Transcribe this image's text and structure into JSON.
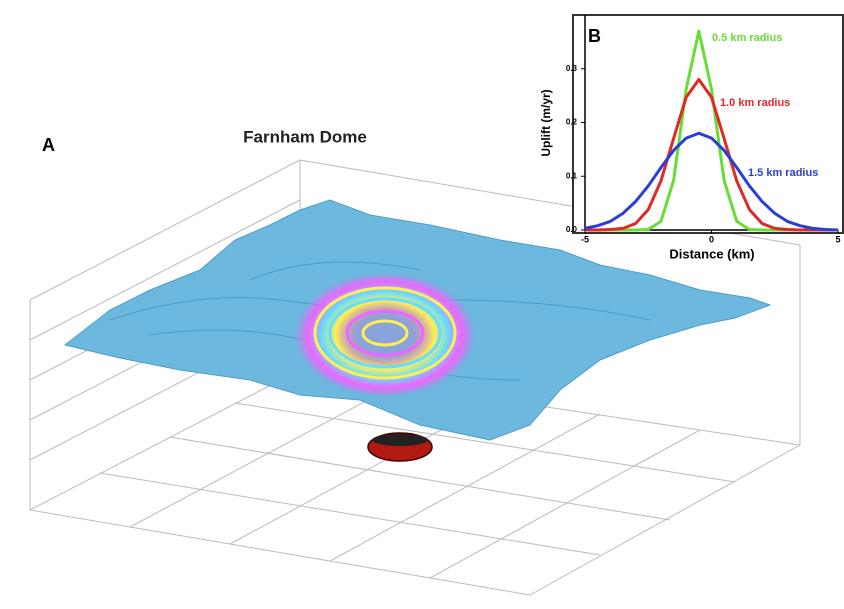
{
  "panel_a": {
    "label": "A",
    "title": "Farnham Dome"
  },
  "chart_data": {
    "type": "line",
    "label": "B",
    "x_label": "Distance (km)",
    "y_label": "Uplift (m/yr)",
    "x": [
      -5,
      -4.5,
      -4,
      -3.5,
      -3,
      -2.5,
      -2,
      -1.5,
      -1,
      -0.5,
      0,
      0.5,
      1,
      1.5,
      2,
      2.5,
      3,
      3.5,
      4,
      4.5,
      5
    ],
    "series": [
      {
        "name": "0.5 km radius",
        "color": "#66dd33",
        "values": [
          0,
          0,
          0,
          0,
          0,
          0.001,
          0.016,
          0.092,
          0.262,
          0.37,
          0.262,
          0.092,
          0.016,
          0.001,
          0,
          0,
          0,
          0,
          0,
          0,
          0
        ]
      },
      {
        "name": "1.0 km radius",
        "color": "#e02828",
        "values": [
          0,
          0,
          0.001,
          0.003,
          0.012,
          0.038,
          0.091,
          0.17,
          0.247,
          0.28,
          0.247,
          0.17,
          0.091,
          0.038,
          0.012,
          0.003,
          0.001,
          0,
          0,
          0,
          0
        ]
      },
      {
        "name": "1.5 km radius",
        "color": "#2a3fd6",
        "values": [
          0.003,
          0.008,
          0.016,
          0.031,
          0.053,
          0.082,
          0.116,
          0.148,
          0.171,
          0.18,
          0.171,
          0.148,
          0.116,
          0.082,
          0.053,
          0.031,
          0.016,
          0.008,
          0.003,
          0.001,
          0
        ]
      }
    ],
    "xlim": [
      -5,
      5
    ],
    "xticks": [
      -5,
      0,
      5
    ],
    "ylim": [
      0,
      0.4
    ],
    "yticks": [
      {
        "value": 0,
        "label": "0.0"
      },
      0.1,
      0.2,
      0.3
    ]
  }
}
